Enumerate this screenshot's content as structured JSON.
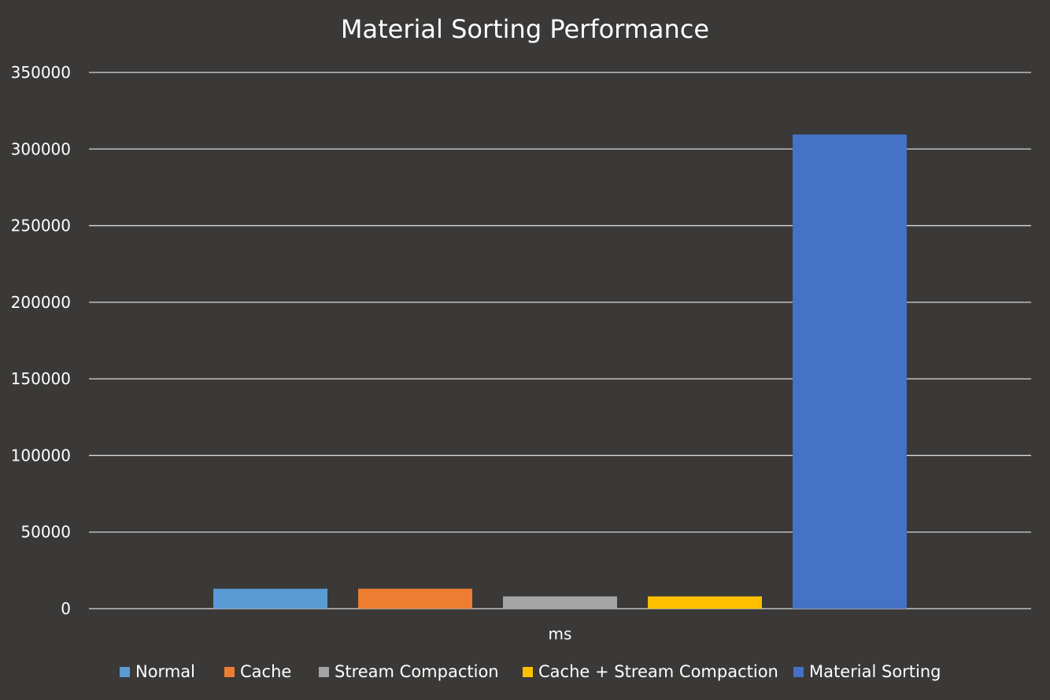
{
  "chart_data": {
    "type": "bar",
    "title": "Material Sorting Performance",
    "xlabel": "ms",
    "ylabel": "",
    "ylim": [
      0,
      350000
    ],
    "yticks": [
      0,
      50000,
      100000,
      150000,
      200000,
      250000,
      300000,
      350000
    ],
    "ytick_labels": [
      "0",
      "50000",
      "100000",
      "150000",
      "200000",
      "250000",
      "300000",
      "350000"
    ],
    "categories": [
      "ms"
    ],
    "grid": true,
    "legend_position": "bottom",
    "series": [
      {
        "name": "Normal",
        "values": [
          13000
        ],
        "color": "#5b9bd5"
      },
      {
        "name": "Cache",
        "values": [
          13000
        ],
        "color": "#ed7d31"
      },
      {
        "name": "Stream Compaction",
        "values": [
          8000
        ],
        "color": "#a5a5a5"
      },
      {
        "name": "Cache + Stream Compaction",
        "values": [
          8000
        ],
        "color": "#ffc000"
      },
      {
        "name": "Material Sorting",
        "values": [
          309500
        ],
        "color": "#4472c4"
      }
    ]
  }
}
